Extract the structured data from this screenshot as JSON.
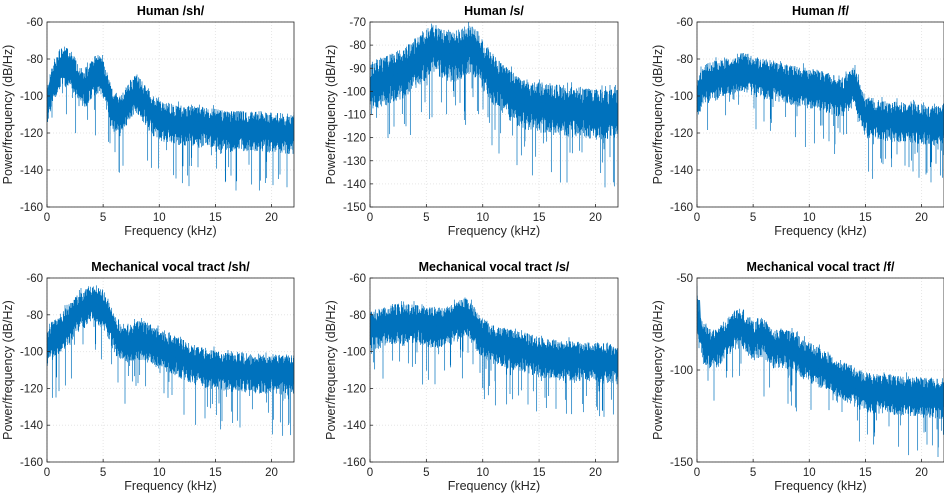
{
  "figure": {
    "xlabel": "Frequency (kHz)",
    "ylabel": "Power/frequency (dB/Hz)",
    "line_color": "#0072BD"
  },
  "chart_data": [
    {
      "type": "line",
      "title": "Human /sh/",
      "xlabel": "Frequency (kHz)",
      "ylabel": "Power/frequency (dB/Hz)",
      "xlim": [
        0,
        22
      ],
      "ylim": [
        -160,
        -60
      ],
      "xticks": [
        0,
        5,
        10,
        15,
        20
      ],
      "yticks": [
        -160,
        -140,
        -120,
        -100,
        -80,
        -60
      ],
      "grid": true,
      "series": [
        {
          "x": [
            0,
            0.5,
            1,
            1.5,
            2,
            2.5,
            3,
            3.5,
            4,
            4.5,
            5,
            5.5,
            6,
            6.5,
            7,
            7.5,
            8,
            8.5,
            9,
            9.5,
            10,
            11,
            12,
            13,
            14,
            15,
            16,
            17,
            18,
            19,
            20,
            21,
            22
          ],
          "values": [
            -105,
            -92,
            -86,
            -83,
            -84,
            -89,
            -94,
            -94,
            -90,
            -87,
            -90,
            -100,
            -108,
            -110,
            -106,
            -100,
            -98,
            -102,
            -106,
            -110,
            -112,
            -114,
            -115,
            -115,
            -116,
            -117,
            -118,
            -118,
            -118,
            -118,
            -119,
            -119,
            -120
          ]
        }
      ]
    },
    {
      "type": "line",
      "title": "Human /s/",
      "xlabel": "Frequency (kHz)",
      "ylabel": "Power/frequency (dB/Hz)",
      "xlim": [
        0,
        22
      ],
      "ylim": [
        -150,
        -70
      ],
      "xticks": [
        0,
        5,
        10,
        15,
        20
      ],
      "yticks": [
        -150,
        -140,
        -130,
        -120,
        -110,
        -100,
        -90,
        -80,
        -70
      ],
      "grid": true,
      "series": [
        {
          "x": [
            0,
            0.5,
            1,
            1.5,
            2,
            2.5,
            3,
            3.5,
            4,
            4.5,
            5,
            5.5,
            6,
            6.5,
            7,
            7.5,
            8,
            8.5,
            9,
            9.5,
            10,
            11,
            12,
            13,
            14,
            15,
            16,
            17,
            18,
            19,
            20,
            21,
            22
          ],
          "values": [
            -98,
            -96,
            -95,
            -94,
            -93,
            -92,
            -91,
            -89,
            -87,
            -85,
            -83,
            -80,
            -81,
            -83,
            -84,
            -84,
            -83,
            -81,
            -80,
            -83,
            -88,
            -94,
            -99,
            -103,
            -105,
            -106,
            -107,
            -107,
            -108,
            -108,
            -109,
            -109,
            -109
          ]
        }
      ]
    },
    {
      "type": "line",
      "title": "Human /f/",
      "xlabel": "Frequency (kHz)",
      "ylabel": "Power/frequency (dB/Hz)",
      "xlim": [
        0,
        22
      ],
      "ylim": [
        -160,
        -60
      ],
      "xticks": [
        0,
        5,
        10,
        15,
        20
      ],
      "yticks": [
        -160,
        -140,
        -120,
        -100,
        -80,
        -60
      ],
      "grid": true,
      "series": [
        {
          "x": [
            0,
            0.5,
            1,
            1.5,
            2,
            2.5,
            3,
            3.5,
            4,
            4.5,
            5,
            5.5,
            6,
            6.5,
            7,
            7.5,
            8,
            8.5,
            9,
            9.5,
            10,
            11,
            12,
            13,
            13.5,
            14,
            14.5,
            15,
            16,
            17,
            18,
            19,
            20,
            21,
            22
          ],
          "values": [
            -100,
            -94,
            -92,
            -91,
            -90,
            -89,
            -88,
            -87,
            -86,
            -87,
            -88,
            -89,
            -90,
            -90,
            -91,
            -92,
            -93,
            -93,
            -94,
            -94,
            -95,
            -96,
            -98,
            -100,
            -97,
            -94,
            -102,
            -110,
            -112,
            -113,
            -113,
            -114,
            -114,
            -115,
            -115
          ]
        }
      ]
    },
    {
      "type": "line",
      "title": "Mechanical vocal tract /sh/",
      "xlabel": "Frequency (kHz)",
      "ylabel": "Power/frequency (dB/Hz)",
      "xlim": [
        0,
        22
      ],
      "ylim": [
        -160,
        -60
      ],
      "xticks": [
        0,
        5,
        10,
        15,
        20
      ],
      "yticks": [
        -160,
        -140,
        -120,
        -100,
        -80,
        -60
      ],
      "grid": true,
      "series": [
        {
          "x": [
            0,
            0.5,
            1,
            1.5,
            2,
            2.5,
            3,
            3.5,
            4,
            4.5,
            5,
            5.5,
            6,
            6.5,
            7,
            7.5,
            8,
            8.5,
            9,
            9.5,
            10,
            11,
            12,
            13,
            14,
            15,
            16,
            17,
            18,
            19,
            20,
            21,
            22
          ],
          "values": [
            -97,
            -93,
            -90,
            -87,
            -84,
            -80,
            -77,
            -75,
            -73,
            -74,
            -76,
            -82,
            -90,
            -94,
            -95,
            -94,
            -93,
            -93,
            -94,
            -96,
            -98,
            -100,
            -103,
            -106,
            -108,
            -109,
            -110,
            -110,
            -111,
            -111,
            -111,
            -112,
            -112
          ]
        }
      ]
    },
    {
      "type": "line",
      "title": "Mechanical vocal tract /s/",
      "xlabel": "Frequency (kHz)",
      "ylabel": "Power/frequency (dB/Hz)",
      "xlim": [
        0,
        22
      ],
      "ylim": [
        -160,
        -60
      ],
      "xticks": [
        0,
        5,
        10,
        15,
        20
      ],
      "yticks": [
        -160,
        -140,
        -120,
        -100,
        -80,
        -60
      ],
      "grid": true,
      "series": [
        {
          "x": [
            0,
            0.5,
            1,
            1.5,
            2,
            2.5,
            3,
            3.5,
            4,
            4.5,
            5,
            5.5,
            6,
            6.5,
            7,
            7.5,
            8,
            8.5,
            9,
            9.5,
            10,
            11,
            12,
            13,
            14,
            15,
            16,
            17,
            18,
            19,
            20,
            21,
            22
          ],
          "values": [
            -88,
            -87,
            -86,
            -85,
            -84,
            -84,
            -84,
            -84,
            -84,
            -84,
            -85,
            -86,
            -86,
            -86,
            -85,
            -83,
            -81,
            -80,
            -83,
            -88,
            -92,
            -95,
            -97,
            -99,
            -100,
            -102,
            -103,
            -104,
            -104,
            -105,
            -105,
            -105,
            -106
          ]
        }
      ]
    },
    {
      "type": "line",
      "title": "Mechanical vocal tract /f/",
      "xlabel": "Frequency (kHz)",
      "ylabel": "Power/frequency (dB/Hz)",
      "xlim": [
        0,
        22
      ],
      "ylim": [
        -150,
        -50
      ],
      "xticks": [
        0,
        5,
        10,
        15,
        20
      ],
      "yticks": [
        -150,
        -100,
        -50
      ],
      "grid": true,
      "series": [
        {
          "x": [
            0,
            0.1,
            0.5,
            1,
            1.5,
            2,
            2.5,
            3,
            3.5,
            4,
            4.5,
            5,
            5.5,
            6,
            6.5,
            7,
            7.5,
            8,
            8.5,
            9,
            9.5,
            10,
            11,
            12,
            13,
            14,
            15,
            16,
            17,
            18,
            19,
            20,
            21,
            22
          ],
          "values": [
            -62,
            -75,
            -83,
            -87,
            -88,
            -86,
            -82,
            -79,
            -77,
            -76,
            -80,
            -84,
            -81,
            -82,
            -86,
            -88,
            -87,
            -88,
            -89,
            -91,
            -93,
            -95,
            -98,
            -101,
            -105,
            -108,
            -111,
            -112,
            -112,
            -113,
            -113,
            -114,
            -114,
            -115
          ]
        }
      ]
    }
  ]
}
